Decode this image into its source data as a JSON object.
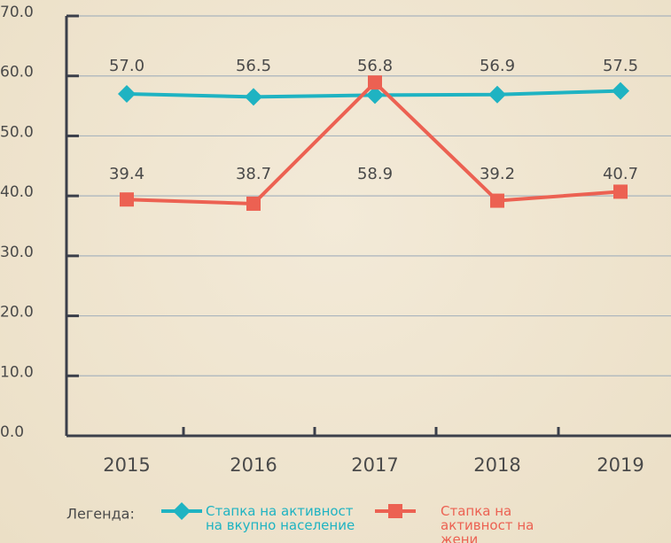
{
  "chart_data": {
    "type": "line",
    "categories": [
      "2015",
      "2016",
      "2017",
      "2018",
      "2019"
    ],
    "series": [
      {
        "name": "Стапка на активност на вкупно население",
        "color": "#1fb3c2",
        "values": [
          57.0,
          56.5,
          56.8,
          56.9,
          57.5
        ],
        "value_labels": [
          "57.0",
          "56.5",
          "56.8",
          "56.9",
          "57.5"
        ],
        "marker": "diamond"
      },
      {
        "name": "Стапка на активност на жени",
        "color": "#ec6152",
        "values": [
          39.4,
          38.7,
          58.9,
          39.2,
          40.7
        ],
        "value_labels": [
          "39.4",
          "38.7",
          "58.9",
          "39.2",
          "40.7"
        ],
        "marker": "square"
      }
    ],
    "ylim": [
      0,
      70
    ],
    "yticks": [
      {
        "value": 0,
        "label": "0.0"
      },
      {
        "value": 10,
        "label": "10.0"
      },
      {
        "value": 20,
        "label": "20.0"
      },
      {
        "value": 30,
        "label": "30.0"
      },
      {
        "value": 40,
        "label": "40.0"
      },
      {
        "value": 50,
        "label": "50.0"
      },
      {
        "value": 60,
        "label": "60.0"
      },
      {
        "value": 70,
        "label": "70.0"
      }
    ],
    "grid": true,
    "legend_title": "Легенда:"
  }
}
